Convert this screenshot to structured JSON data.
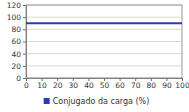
{
  "chart_data": {
    "type": "line",
    "x": [
      0,
      100
    ],
    "series": [
      {
        "name": "Conjugado da carga (%)",
        "color": "#2b3bb3",
        "values": [
          90,
          90
        ]
      }
    ],
    "xlim": [
      0,
      100
    ],
    "xticks": [
      0,
      10,
      20,
      30,
      40,
      50,
      60,
      70,
      80,
      90,
      100
    ],
    "ylim": [
      0,
      120
    ],
    "yticks": [
      0,
      20,
      40,
      60,
      80,
      100,
      120
    ],
    "grid": true,
    "legend": "bottom"
  }
}
